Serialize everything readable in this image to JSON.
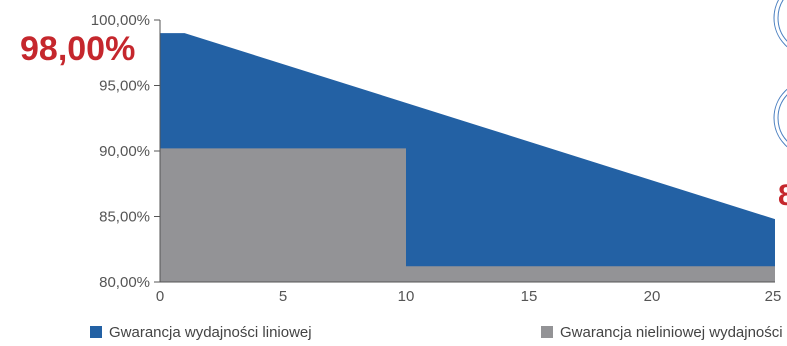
{
  "chart_data": {
    "type": "area",
    "xlim": [
      0,
      25
    ],
    "ylim": [
      80,
      100
    ],
    "x_ticks": [
      "0",
      "5",
      "10",
      "15",
      "20",
      "25"
    ],
    "y_ticks": [
      "100,00%",
      "95,00%",
      "90,00%",
      "85,00%",
      "80,00%"
    ],
    "highlight_value": "98,00%",
    "series": [
      {
        "name": "Gwarancja wydajności liniowej",
        "color": "#2361a4",
        "points": [
          [
            0,
            99.0
          ],
          [
            1,
            99.0
          ],
          [
            25,
            84.8
          ]
        ]
      },
      {
        "name": "Gwarancja nieliniowej wydajności",
        "color": "#939396",
        "points": [
          [
            0,
            90.2
          ],
          [
            10,
            90.2
          ],
          [
            10,
            81.2
          ],
          [
            25,
            81.2
          ]
        ]
      }
    ],
    "legend_position": "bottom",
    "grid": false
  },
  "accent_color": "#c5272d",
  "decorations": {
    "right_partial_text": "8",
    "icons": [
      "circle-badge-icon",
      "circle-badge-icon"
    ]
  }
}
